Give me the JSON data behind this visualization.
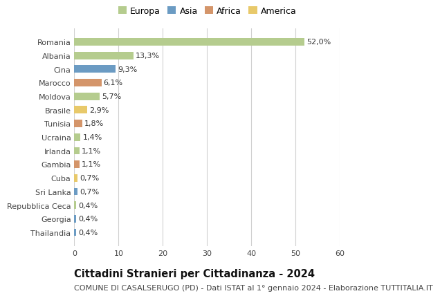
{
  "countries": [
    "Romania",
    "Albania",
    "Cina",
    "Marocco",
    "Moldova",
    "Brasile",
    "Tunisia",
    "Ucraina",
    "Irlanda",
    "Gambia",
    "Cuba",
    "Sri Lanka",
    "Repubblica Ceca",
    "Georgia",
    "Thailandia"
  ],
  "values": [
    52.0,
    13.3,
    9.3,
    6.1,
    5.7,
    2.9,
    1.8,
    1.4,
    1.1,
    1.1,
    0.7,
    0.7,
    0.4,
    0.4,
    0.4
  ],
  "labels": [
    "52,0%",
    "13,3%",
    "9,3%",
    "6,1%",
    "5,7%",
    "2,9%",
    "1,8%",
    "1,4%",
    "1,1%",
    "1,1%",
    "0,7%",
    "0,7%",
    "0,4%",
    "0,4%",
    "0,4%"
  ],
  "continents": [
    "Europa",
    "Europa",
    "Asia",
    "Africa",
    "Europa",
    "America",
    "Africa",
    "Europa",
    "Europa",
    "Africa",
    "America",
    "Asia",
    "Europa",
    "Asia",
    "Asia"
  ],
  "colors": {
    "Europa": "#b5cc8e",
    "Asia": "#6b9bc3",
    "Africa": "#d4956a",
    "America": "#e8c96a"
  },
  "legend_order": [
    "Europa",
    "Asia",
    "Africa",
    "America"
  ],
  "title": "Cittadini Stranieri per Cittadinanza - 2024",
  "subtitle": "COMUNE DI CASALSERUGO (PD) - Dati ISTAT al 1° gennaio 2024 - Elaborazione TUTTITALIA.IT",
  "xlim": [
    0,
    60
  ],
  "xticks": [
    0,
    10,
    20,
    30,
    40,
    50,
    60
  ],
  "bg_color": "#ffffff",
  "grid_color": "#d0d0d0",
  "title_fontsize": 10.5,
  "subtitle_fontsize": 8.0,
  "tick_fontsize": 8,
  "bar_label_fontsize": 8,
  "bar_height": 0.55
}
